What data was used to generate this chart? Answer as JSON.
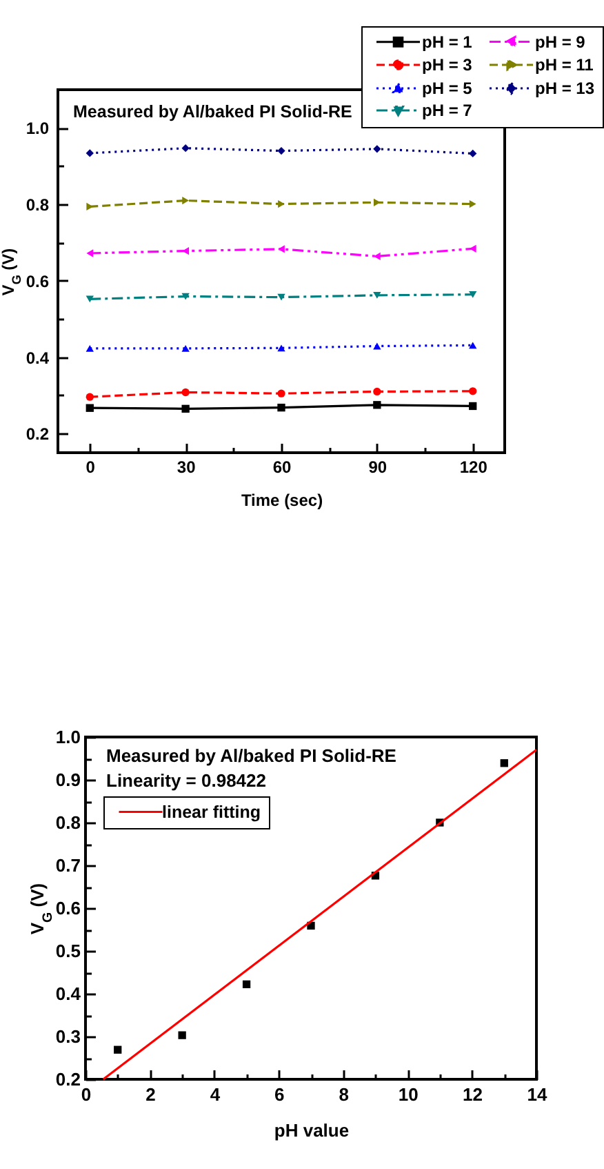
{
  "chart_data": [
    {
      "type": "line",
      "annotations": [
        "Measured by Al/baked PI Solid-RE"
      ],
      "xlabel": "Time (sec)",
      "ylabel": "V$_{G}$ (V)",
      "x": [
        0,
        30,
        60,
        90,
        120
      ],
      "xlim": [
        -10,
        130
      ],
      "xticks": [
        0,
        {
          "value": 15,
          "label": null
        },
        30,
        {
          "value": 45,
          "label": null
        },
        60,
        {
          "value": 75,
          "label": null
        },
        90,
        {
          "value": 105,
          "label": null
        },
        120
      ],
      "ylim": [
        0.15,
        1.1
      ],
      "yticks": [
        0.2,
        {
          "value": 0.3,
          "label": null
        },
        0.4,
        {
          "value": 0.5,
          "label": null
        },
        0.6,
        {
          "value": 0.7,
          "label": null
        },
        0.8,
        {
          "value": 0.9,
          "label": null
        },
        {
          "value": 1,
          "label": "1.0"
        }
      ],
      "legend": "top right",
      "series": [
        {
          "name": "pH = 1",
          "color": "#000000",
          "marker": "square",
          "line_style": "solid",
          "values": [
            0.267,
            0.265,
            0.268,
            0.275,
            0.272
          ]
        },
        {
          "name": "pH = 3",
          "color": "#ff0000",
          "marker": "circle",
          "line_style": "dashed",
          "values": [
            0.296,
            0.308,
            0.305,
            0.31,
            0.311
          ]
        },
        {
          "name": "pH = 5",
          "color": "#0000ff",
          "marker": "triangle",
          "line_style": "dotted",
          "values": [
            0.423,
            0.423,
            0.424,
            0.429,
            0.431
          ]
        },
        {
          "name": "pH = 7",
          "color": "#008080",
          "marker": "triangle-down",
          "line_style": "dashdot",
          "values": [
            0.552,
            0.559,
            0.557,
            0.562,
            0.564
          ]
        },
        {
          "name": "pH = 9",
          "color": "#ff00ff",
          "marker": "triangle-left",
          "line_style": "dashdotdot",
          "values": [
            0.672,
            0.678,
            0.683,
            0.664,
            0.684
          ]
        },
        {
          "name": "pH = 11",
          "color": "#808000",
          "marker": "triangle-right",
          "line_style": "dashed",
          "values": [
            0.794,
            0.81,
            0.801,
            0.805,
            0.801
          ]
        },
        {
          "name": "pH = 13",
          "color": "#000080",
          "marker": "diamond",
          "line_style": "dotted",
          "values": [
            0.934,
            0.947,
            0.94,
            0.945,
            0.933
          ]
        }
      ]
    },
    {
      "type": "scatter",
      "annotations": [
        "Measured by Al/baked PI Solid-RE",
        "Linearity = 0.98422"
      ],
      "xlabel": "pH value",
      "ylabel": "V$_{G}$ (V)",
      "x": [
        1,
        3,
        5,
        7,
        9,
        11,
        13
      ],
      "xlim": [
        0,
        14
      ],
      "xticks": [
        0,
        {
          "value": 1,
          "label": null
        },
        2,
        {
          "value": 3,
          "label": null
        },
        4,
        {
          "value": 5,
          "label": null
        },
        6,
        {
          "value": 7,
          "label": null
        },
        8,
        {
          "value": 9,
          "label": null
        },
        10,
        {
          "value": 11,
          "label": null
        },
        12,
        {
          "value": 13,
          "label": null
        },
        14
      ],
      "ylim": [
        0.2,
        1
      ],
      "yticks": [
        0.2,
        {
          "value": 0.25,
          "label": null
        },
        0.3,
        {
          "value": 0.35,
          "label": null
        },
        0.4,
        {
          "value": 0.45,
          "label": null
        },
        0.5,
        {
          "value": 0.55,
          "label": null
        },
        0.6,
        {
          "value": 0.65,
          "label": null
        },
        0.7,
        {
          "value": 0.75,
          "label": null
        },
        0.8,
        {
          "value": 0.85,
          "label": null
        },
        0.9,
        {
          "value": 0.95,
          "label": null
        },
        {
          "value": 1,
          "label": "1.0"
        }
      ],
      "legend": "top left",
      "series": [
        {
          "color": "#000000",
          "marker": "square",
          "values": [
            0.269,
            0.303,
            0.422,
            0.559,
            0.676,
            0.8,
            0.939
          ]
        },
        {
          "type": "line",
          "name": "linear fitting",
          "color": "#ff0000",
          "marker": "none",
          "line_style": "solid",
          "x": [
            0.55,
            14
          ],
          "values": [
            0.2,
            0.97
          ]
        }
      ]
    }
  ]
}
